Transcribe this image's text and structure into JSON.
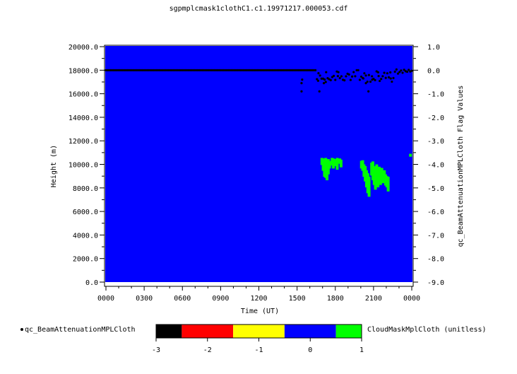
{
  "chart_data": {
    "type": "heatmap",
    "title": "sgpmplcmask1clothC1.c1.19971217.000053.cdf",
    "xlabel": "Time (UT)",
    "ylabel": "Height (m)",
    "y2label": "qc_BeamAttenuationMPLCloth Flag Values",
    "x_ticks": [
      "0000",
      "0300",
      "0600",
      "0900",
      "1200",
      "1500",
      "1800",
      "2100",
      "0000"
    ],
    "x_range_hours": [
      0,
      24
    ],
    "y_ticks": [
      "0.0",
      "2000.0",
      "4000.0",
      "6000.0",
      "8000.0",
      "10000.0",
      "12000.0",
      "14000.0",
      "16000.0",
      "18000.0",
      "20000.0"
    ],
    "ylim": [
      0,
      20000
    ],
    "y2_ticks": [
      "-9.0",
      "-8.0",
      "-7.0",
      "-6.0",
      "-5.0",
      "-4.0",
      "-3.0",
      "-2.0",
      "-1.0",
      "0.0",
      "1.0"
    ],
    "y2lim": [
      -9,
      1
    ],
    "background_value": 0,
    "colorbar": {
      "label": "CloudMaskMplCloth (unitless)",
      "ticks": [
        "-3",
        "-2",
        "-1",
        "0",
        "1"
      ],
      "range": [
        -3,
        1
      ],
      "bins": [
        {
          "from": -3.0,
          "to": -2.5,
          "color": "#000000"
        },
        {
          "from": -2.5,
          "to": -1.5,
          "color": "#ff0000"
        },
        {
          "from": -1.5,
          "to": -0.5,
          "color": "#ffff00"
        },
        {
          "from": -0.5,
          "to": 0.5,
          "color": "#0000ff"
        },
        {
          "from": 0.5,
          "to": 1.0,
          "color": "#00ff00"
        }
      ]
    },
    "qc_legend": "qc_BeamAttenuationMPLCloth",
    "cloud_blocks": [
      {
        "t": 16.95,
        "top": 10550,
        "bottom": 9950
      },
      {
        "t": 17.05,
        "top": 10500,
        "bottom": 9450
      },
      {
        "t": 17.15,
        "top": 10450,
        "bottom": 8950
      },
      {
        "t": 17.25,
        "top": 10550,
        "bottom": 8850
      },
      {
        "t": 17.35,
        "top": 10250,
        "bottom": 8650
      },
      {
        "t": 17.45,
        "top": 10450,
        "bottom": 9150
      },
      {
        "t": 17.55,
        "top": 10300,
        "bottom": 9650
      },
      {
        "t": 17.75,
        "top": 10550,
        "bottom": 9900
      },
      {
        "t": 17.85,
        "top": 10500,
        "bottom": 9650
      },
      {
        "t": 18.05,
        "top": 10450,
        "bottom": 9850
      },
      {
        "t": 18.15,
        "top": 10550,
        "bottom": 9550
      },
      {
        "t": 18.35,
        "top": 10500,
        "bottom": 10050
      },
      {
        "t": 18.45,
        "top": 10400,
        "bottom": 9750
      },
      {
        "t": 20.05,
        "top": 10300,
        "bottom": 9650
      },
      {
        "t": 20.15,
        "top": 10350,
        "bottom": 9450
      },
      {
        "t": 20.25,
        "top": 10000,
        "bottom": 8950
      },
      {
        "t": 20.35,
        "top": 9850,
        "bottom": 8550
      },
      {
        "t": 20.45,
        "top": 9500,
        "bottom": 8050
      },
      {
        "t": 20.55,
        "top": 9250,
        "bottom": 7550
      },
      {
        "t": 20.65,
        "top": 8950,
        "bottom": 7250
      },
      {
        "t": 20.85,
        "top": 10150,
        "bottom": 9050
      },
      {
        "t": 20.95,
        "top": 10250,
        "bottom": 8650
      },
      {
        "t": 21.05,
        "top": 9850,
        "bottom": 8250
      },
      {
        "t": 21.15,
        "top": 9650,
        "bottom": 7850
      },
      {
        "t": 21.25,
        "top": 10000,
        "bottom": 8450
      },
      {
        "t": 21.35,
        "top": 9650,
        "bottom": 8050
      },
      {
        "t": 21.45,
        "top": 9800,
        "bottom": 8600
      },
      {
        "t": 21.55,
        "top": 9500,
        "bottom": 8250
      },
      {
        "t": 21.65,
        "top": 9700,
        "bottom": 8800
      },
      {
        "t": 21.75,
        "top": 9350,
        "bottom": 8400
      },
      {
        "t": 21.85,
        "top": 9500,
        "bottom": 8850
      },
      {
        "t": 21.95,
        "top": 9150,
        "bottom": 8200
      },
      {
        "t": 22.05,
        "top": 9000,
        "bottom": 8050
      },
      {
        "t": 22.15,
        "top": 8950,
        "bottom": 7700
      },
      {
        "t": 23.9,
        "top": 10900,
        "bottom": 10650
      }
    ],
    "qc_points": [
      {
        "t": 15.35,
        "y": -0.9
      },
      {
        "t": 15.35,
        "y": -0.55
      },
      {
        "t": 15.4,
        "y": -0.4
      },
      {
        "t": 16.65,
        "y": -0.45
      },
      {
        "t": 16.75,
        "y": -0.9
      },
      {
        "t": 17.1,
        "y": -0.55
      },
      {
        "t": 17.25,
        "y": -0.5
      },
      {
        "t": 18.2,
        "y": -0.25
      },
      {
        "t": 20.2,
        "y": -0.35
      },
      {
        "t": 20.4,
        "y": -0.55
      },
      {
        "t": 20.6,
        "y": -0.9
      },
      {
        "t": 20.9,
        "y": -0.4
      },
      {
        "t": 21.4,
        "y": -0.25
      },
      {
        "t": 22.35,
        "y": -0.35
      }
    ]
  }
}
